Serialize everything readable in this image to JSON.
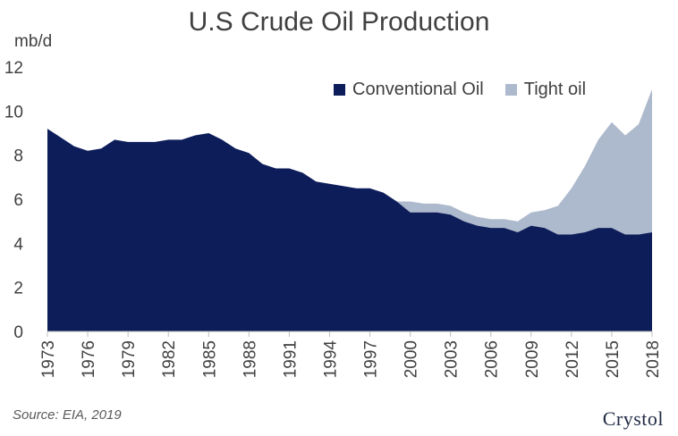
{
  "source": "Source: EIA, 2019",
  "logo_text": "Crystol",
  "colors": {
    "conventional": "#0d1d5a",
    "tight": "#adb9cc"
  },
  "chart_data": {
    "type": "area",
    "stacked": true,
    "title": "U.S Crude Oil Production",
    "unit_label": "mb/d",
    "xlabel": "",
    "ylabel": "",
    "ylim": [
      0,
      12
    ],
    "yticks": [
      0,
      2,
      4,
      6,
      8,
      10,
      12
    ],
    "xticks": [
      1973,
      1976,
      1979,
      1982,
      1985,
      1988,
      1991,
      1994,
      1997,
      2000,
      2003,
      2006,
      2009,
      2012,
      2015,
      2018
    ],
    "grid": false,
    "legend_position": "top-right",
    "x": [
      1973,
      1974,
      1975,
      1976,
      1977,
      1978,
      1979,
      1980,
      1981,
      1982,
      1983,
      1984,
      1985,
      1986,
      1987,
      1988,
      1989,
      1990,
      1991,
      1992,
      1993,
      1994,
      1995,
      1996,
      1997,
      1998,
      1999,
      2000,
      2001,
      2002,
      2003,
      2004,
      2005,
      2006,
      2007,
      2008,
      2009,
      2010,
      2011,
      2012,
      2013,
      2014,
      2015,
      2016,
      2017,
      2018
    ],
    "series": [
      {
        "name": "Conventional Oil",
        "values": [
          9.2,
          8.8,
          8.4,
          8.2,
          8.3,
          8.7,
          8.6,
          8.6,
          8.6,
          8.7,
          8.7,
          8.9,
          9.0,
          8.7,
          8.3,
          8.1,
          7.6,
          7.4,
          7.4,
          7.2,
          6.8,
          6.7,
          6.6,
          6.5,
          6.5,
          6.3,
          5.9,
          5.4,
          5.4,
          5.4,
          5.3,
          5.0,
          4.8,
          4.7,
          4.7,
          4.5,
          4.8,
          4.7,
          4.4,
          4.4,
          4.5,
          4.7,
          4.7,
          4.4,
          4.4,
          4.5
        ]
      },
      {
        "name": "Tight oil",
        "values": [
          0,
          0,
          0,
          0,
          0,
          0,
          0,
          0,
          0,
          0,
          0,
          0,
          0,
          0,
          0,
          0,
          0,
          0,
          0,
          0,
          0,
          0,
          0,
          0,
          0,
          0,
          0,
          0.5,
          0.4,
          0.4,
          0.4,
          0.4,
          0.4,
          0.4,
          0.4,
          0.5,
          0.6,
          0.8,
          1.3,
          2.1,
          3.0,
          4.0,
          4.8,
          4.5,
          5.0,
          6.5
        ]
      }
    ]
  }
}
